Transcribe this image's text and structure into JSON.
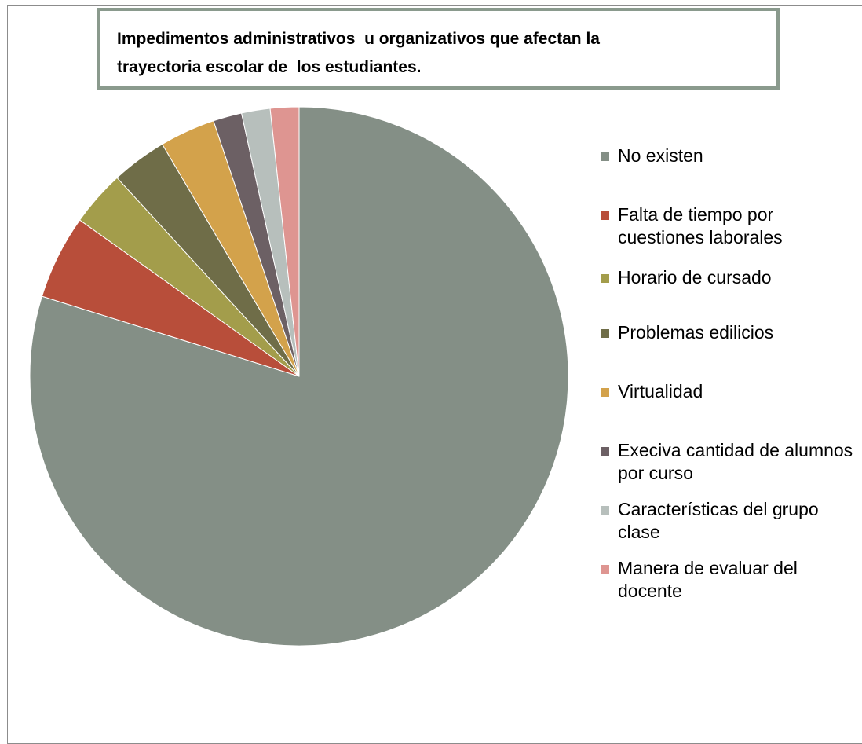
{
  "chart_data": {
    "type": "pie",
    "title_lines": [
      "Impedimentos administrativos  u organizativos que afectan la",
      "trayectoria escolar de  los estudiantes."
    ],
    "start_angle_deg": 0,
    "direction": "clockwise",
    "legend_position": "right",
    "slices": [
      {
        "label": "No existen",
        "value": 79,
        "color": "#848f86"
      },
      {
        "label": "Falta de tiempo por cuestiones laborales",
        "value": 5,
        "color": "#b84e3a"
      },
      {
        "label": "Horario de cursado",
        "value": 3.3,
        "color": "#a39d4b"
      },
      {
        "label": "Problemas edilicios",
        "value": 3.3,
        "color": "#6f6d48"
      },
      {
        "label": "Virtualidad",
        "value": 3.3,
        "color": "#d3a24b"
      },
      {
        "label": "Execiva cantidad de alumnos por curso",
        "value": 1.7,
        "color": "#6c6064"
      },
      {
        "label": "Características del grupo clase",
        "value": 1.7,
        "color": "#b7bfbc"
      },
      {
        "label": "Manera de evaluar del docente",
        "value": 1.7,
        "color": "#de9591"
      }
    ]
  }
}
